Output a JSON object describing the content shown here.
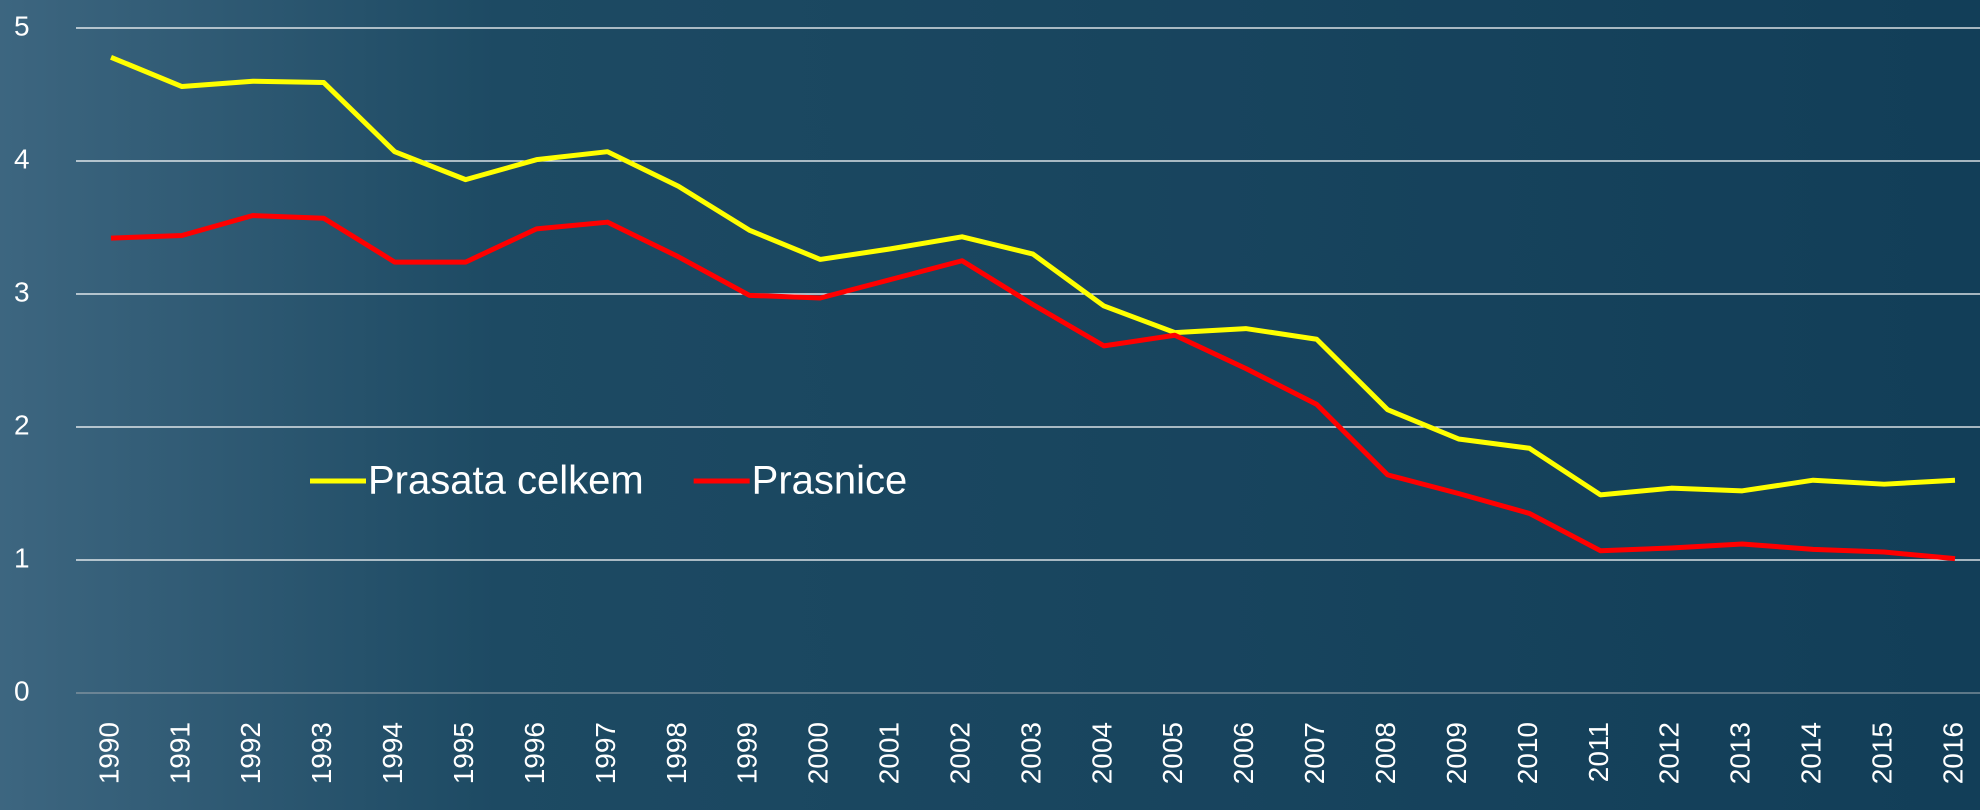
{
  "chart_data": {
    "type": "line",
    "categories": [
      "1990",
      "1991",
      "1992",
      "1993",
      "1994",
      "1995",
      "1996",
      "1997",
      "1998",
      "1999",
      "2000",
      "2001",
      "2002",
      "2003",
      "2004",
      "2005",
      "2006",
      "2007",
      "2008",
      "2009",
      "2010",
      "2011",
      "2012",
      "2013",
      "2014",
      "2015",
      "2016"
    ],
    "series": [
      {
        "name": "Prasata celkem",
        "color": "#ffff00",
        "values": [
          4.78,
          4.56,
          4.6,
          4.59,
          4.07,
          3.86,
          4.01,
          4.07,
          3.81,
          3.48,
          3.26,
          3.34,
          3.43,
          3.3,
          2.91,
          2.71,
          2.74,
          2.66,
          2.13,
          1.91,
          1.84,
          1.49,
          1.54,
          1.52,
          1.6,
          1.57,
          1.6
        ]
      },
      {
        "name": "Prasnice",
        "color": "#ff0000",
        "values": [
          3.42,
          3.44,
          3.59,
          3.57,
          3.24,
          3.24,
          3.49,
          3.54,
          3.28,
          2.99,
          2.97,
          3.11,
          3.25,
          2.92,
          2.61,
          2.69,
          2.44,
          2.17,
          1.64,
          1.5,
          1.35,
          1.07,
          1.09,
          1.12,
          1.08,
          1.06,
          1.01
        ]
      }
    ],
    "ylim": [
      0,
      5
    ],
    "yticks": [
      0,
      1,
      2,
      3,
      4,
      5
    ],
    "grid": true,
    "legend": "center left"
  }
}
